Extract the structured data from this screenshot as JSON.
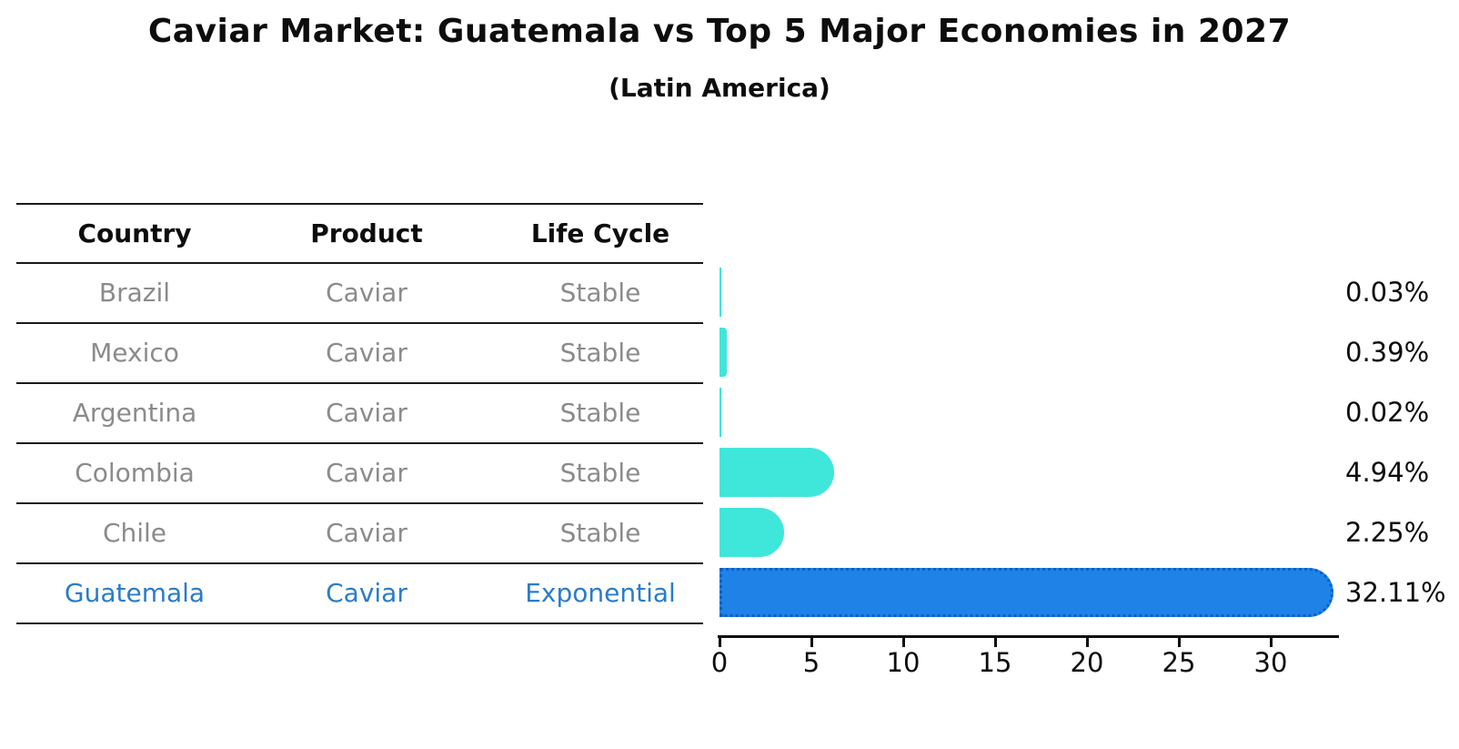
{
  "title": "Caviar Market: Guatemala vs Top 5 Major Economies in 2027",
  "subtitle": "(Latin America)",
  "table": {
    "headers": [
      "Country",
      "Product",
      "Life Cycle"
    ],
    "rows": [
      {
        "country": "Brazil",
        "product": "Caviar",
        "life_cycle": "Stable",
        "highlight": false
      },
      {
        "country": "Mexico",
        "product": "Caviar",
        "life_cycle": "Stable",
        "highlight": false
      },
      {
        "country": "Argentina",
        "product": "Caviar",
        "life_cycle": "Stable",
        "highlight": false
      },
      {
        "country": "Colombia",
        "product": "Caviar",
        "life_cycle": "Stable",
        "highlight": false
      },
      {
        "country": "Chile",
        "product": "Caviar",
        "life_cycle": "Stable",
        "highlight": false
      },
      {
        "country": "Guatemala",
        "product": "Caviar",
        "life_cycle": "Exponential",
        "highlight": true
      }
    ]
  },
  "chart_data": {
    "type": "bar",
    "orientation": "horizontal",
    "title": "Caviar Market: Guatemala vs Top 5 Major Economies in 2027",
    "subtitle": "(Latin America)",
    "categories": [
      "Brazil",
      "Mexico",
      "Argentina",
      "Colombia",
      "Chile",
      "Guatemala"
    ],
    "values": [
      0.03,
      0.39,
      0.02,
      4.94,
      2.25,
      32.11
    ],
    "value_labels": [
      "0.03%",
      "0.39%",
      "0.02%",
      "4.94%",
      "2.25%",
      "32.11%"
    ],
    "highlight_index": 5,
    "x_ticks": [
      0,
      5,
      10,
      15,
      20,
      25,
      30
    ],
    "xlim": [
      0,
      33.7
    ],
    "grid": false,
    "legend": false
  },
  "colors": {
    "teal_bar": "#3fe6da",
    "blue_bar": "#1e82e6",
    "blue_bar_dots": "#0d5fc4",
    "blue_text": "#2a7cc9",
    "gray_text": "#8b8b8b",
    "line": "#1a1a1a",
    "text": "#0d0d0d"
  }
}
